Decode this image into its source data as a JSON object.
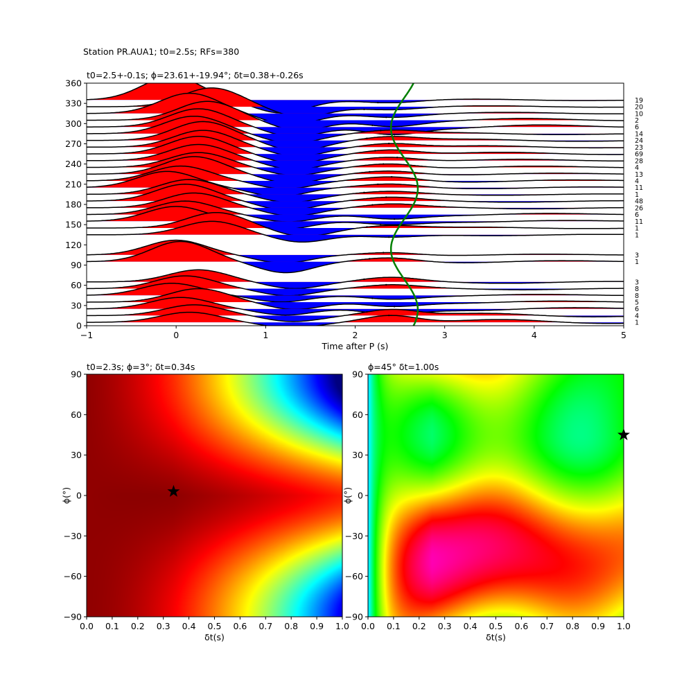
{
  "suptitle": "Station PR.AUA1; t0=2.5s; RFs=380",
  "chart_data": [
    {
      "type": "line",
      "title": "t0=2.5+-0.1s; ϕ=23.61+-19.94°; δt=0.38+-0.26s",
      "xlabel": "Time after P (s)",
      "xlim": [
        -1,
        5
      ],
      "ylim": [
        0,
        360
      ],
      "xticks": [
        "−1",
        "0",
        "1",
        "2",
        "3",
        "4",
        "5"
      ],
      "xtick_values": [
        -1,
        0,
        1,
        2,
        3,
        4,
        5
      ],
      "yticks": [
        "0",
        "30",
        "60",
        "90",
        "120",
        "150",
        "180",
        "210",
        "240",
        "270",
        "300",
        "330",
        "360"
      ],
      "ytick_values": [
        0,
        30,
        60,
        90,
        120,
        150,
        180,
        210,
        240,
        270,
        300,
        330,
        360
      ],
      "fill_colors": {
        "positive": "#ff0000",
        "negative": "#0000ff"
      },
      "curve_color": "#008000",
      "traces": [
        {
          "baz": 5,
          "count": "1",
          "amp": 15,
          "lag": 0.15,
          "late": 12
        },
        {
          "baz": 15,
          "count": "4",
          "amp": 16,
          "lag": 0.2,
          "late": 10
        },
        {
          "baz": 25,
          "count": "6",
          "amp": 17,
          "lag": 0.05,
          "late": -8
        },
        {
          "baz": 35,
          "count": "5",
          "amp": 20,
          "lag": 0.25,
          "late": -6
        },
        {
          "baz": 45,
          "count": "8",
          "amp": 18,
          "lag": -0.05,
          "late": -5
        },
        {
          "baz": 55,
          "count": "8",
          "amp": 19,
          "lag": 0.1,
          "late": 5
        },
        {
          "baz": 65,
          "count": "3",
          "amp": 18,
          "lag": 0.25,
          "late": 6
        },
        {
          "baz": 95,
          "count": "1",
          "amp": 30,
          "lag": 0.05,
          "late": 6
        },
        {
          "baz": 105,
          "count": "3",
          "amp": 22,
          "lag": 0.0,
          "late": 4
        },
        {
          "baz": 135,
          "count": "1",
          "amp": 20,
          "lag": 0.4,
          "late": -4
        },
        {
          "baz": 145,
          "count": "1",
          "amp": 23,
          "lag": 0.45,
          "late": 4
        },
        {
          "baz": 155,
          "count": "11",
          "amp": 22,
          "lag": 0.0,
          "late": -5
        },
        {
          "baz": 165,
          "count": "6",
          "amp": 20,
          "lag": 0.1,
          "late": -6
        },
        {
          "baz": 175,
          "count": "26",
          "amp": 22,
          "lag": 0.2,
          "late": 5
        },
        {
          "baz": 185,
          "count": "48",
          "amp": 25,
          "lag": 0.1,
          "late": 5
        },
        {
          "baz": 195,
          "count": "1",
          "amp": 22,
          "lag": 0.15,
          "late": 4
        },
        {
          "baz": 205,
          "count": "11",
          "amp": 24,
          "lag": -0.1,
          "late": 5
        },
        {
          "baz": 215,
          "count": "4",
          "amp": 22,
          "lag": 0.05,
          "late": 6
        },
        {
          "baz": 225,
          "count": "13",
          "amp": 26,
          "lag": 0.2,
          "late": 5
        },
        {
          "baz": 235,
          "count": "4",
          "amp": 22,
          "lag": 0.25,
          "late": 6
        },
        {
          "baz": 245,
          "count": "28",
          "amp": 24,
          "lag": 0.25,
          "late": 6
        },
        {
          "baz": 255,
          "count": "69",
          "amp": 26,
          "lag": 0.25,
          "late": 7
        },
        {
          "baz": 265,
          "count": "23",
          "amp": 25,
          "lag": 0.3,
          "late": 6
        },
        {
          "baz": 275,
          "count": "24",
          "amp": 28,
          "lag": 0.3,
          "late": 6
        },
        {
          "baz": 285,
          "count": "14",
          "amp": 26,
          "lag": 0.2,
          "late": 5
        },
        {
          "baz": 295,
          "count": "6",
          "amp": 27,
          "lag": 0.25,
          "late": -10
        },
        {
          "baz": 305,
          "count": "2",
          "amp": 28,
          "lag": 0.35,
          "late": -8
        },
        {
          "baz": 315,
          "count": "10",
          "amp": 30,
          "lag": 0.15,
          "late": -5
        },
        {
          "baz": 325,
          "count": "20",
          "amp": 28,
          "lag": 0.4,
          "late": -4
        },
        {
          "baz": 335,
          "count": "19",
          "amp": 35,
          "lag": -0.05,
          "late": -4
        }
      ]
    },
    {
      "type": "heatmap",
      "title": "t0=2.3s; ϕ=3°; δt=0.34s",
      "xlabel": "δt(s)",
      "ylabel": "ϕ(°)",
      "xlim": [
        0,
        1
      ],
      "ylim": [
        -90,
        90
      ],
      "xticks": [
        "0.0",
        "0.1",
        "0.2",
        "0.3",
        "0.4",
        "0.5",
        "0.6",
        "0.7",
        "0.8",
        "0.9",
        "1.0"
      ],
      "xtick_values": [
        0,
        0.1,
        0.2,
        0.3,
        0.4,
        0.5,
        0.6,
        0.7,
        0.8,
        0.9,
        1.0
      ],
      "yticks": [
        "−90",
        "−60",
        "−30",
        "0",
        "30",
        "60",
        "90"
      ],
      "ytick_values": [
        -90,
        -60,
        -30,
        0,
        30,
        60,
        90
      ],
      "colormap": "jet",
      "marker": {
        "x": 0.34,
        "y": 3,
        "symbol": "star"
      }
    },
    {
      "type": "heatmap",
      "title": "ϕ=45° δt=1.00s",
      "xlabel": "δt(s)",
      "ylabel": "ϕ(°)",
      "xlim": [
        0,
        1
      ],
      "ylim": [
        -90,
        90
      ],
      "xticks": [
        "0.0",
        "0.1",
        "0.2",
        "0.3",
        "0.4",
        "0.5",
        "0.6",
        "0.7",
        "0.8",
        "0.9",
        "1.0"
      ],
      "xtick_values": [
        0,
        0.1,
        0.2,
        0.3,
        0.4,
        0.5,
        0.6,
        0.7,
        0.8,
        0.9,
        1.0
      ],
      "yticks": [
        "−90",
        "−60",
        "−30",
        "0",
        "30",
        "60",
        "90"
      ],
      "ytick_values": [
        -90,
        -60,
        -30,
        0,
        30,
        60,
        90
      ],
      "colormap": "hsv",
      "marker": {
        "x": 1.0,
        "y": 45,
        "symbol": "star"
      }
    }
  ]
}
